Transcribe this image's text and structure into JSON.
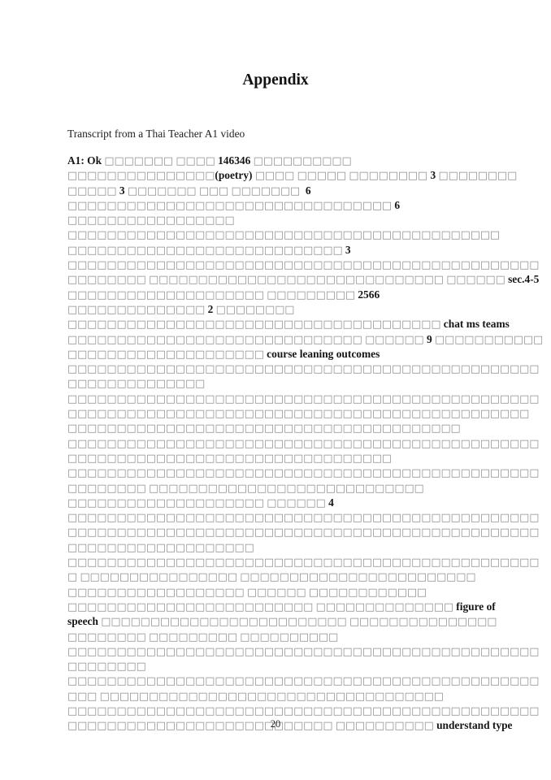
{
  "page": {
    "title": "Appendix",
    "subtitle": "Transcript from a Thai Teacher A1 video",
    "page_number": "20"
  },
  "colors": {
    "background": "#ffffff",
    "text": "#1e1e1e",
    "bold_latin_text": "#161616",
    "missing_glyph_box": "#8e8e8e"
  },
  "transcript": {
    "missing_glyph_char": "□",
    "lines": [
      "A1: Ok □□□□□□□ □□□□ 146346 □□□□□□□□□□",
      "□□□□□□□□□□□□□□□(poetry) □□□□ □□□□□ □□□□□□□□ 3 □□□□□□□□",
      "□□□□□ 3 □□□□□□□ □□□ □□□□□□□  6",
      "□□□□□□□□□□□□□□□□□□□□□□□□□□□□□□□□□ 6",
      "□□□□□□□□□□□□□□□□□",
      "□□□□□□□□□□□□□□□□□□□□□□□□□□□□□□□□□□□□□□□□□□□□",
      "□□□□□□□□□□□□□□□□□□□□□□□□□□□□ 3",
      "□□□□□□□□□□□□□□□□□□□□□□□□□□□□□□□□□□□□□□□□□□□□□□□□",
      "□□□□□□□□ □□□□□□□□□□□□□□□□□□□□□□□□□□□□□□ □□□□□□ sec.4-5",
      "□□□□□□□□□□□□□□□□□□□□ □□□□□□□□□ 2566",
      "□□□□□□□□□□□□□□ 2 □□□□□□□□",
      "□□□□□□□□□□□□□□□□□□□□□□□□□□□□□□□□□□□□□□ chat ms teams",
      "□□□□□□□□□□□□□□□□□□□□□□□□□□□□□□ □□□□□□ 9 □□□□□□□□□□□",
      "□□□□□□□□□□□□□□□□□□□□ course leaning outcomes",
      "□□□□□□□□□□□□□□□□□□□□□□□□□□□□□□□□□□□□□□□□□□□□□□□□",
      "□□□□□□□□□□□□□□",
      "□□□□□□□□□□□□□□□□□□□□□□□□□□□□□□□□□□□□□□□□□□□□□□□□",
      "□□□□□□□□□□□□□□□□□□□□□□□□□□□□□□□□□□□□□□□□□□□□□□□",
      "□□□□□□□□□□□□□□□□□□□□□□□□□□□□□□□□□□□□□□□□",
      "□□□□□□□□□□□□□□□□□□□□□□□□□□□□□□□□□□□□□□□□□□□□□□□□",
      "□□□□□□□□□□□□□□□□□□□□□□□□□□□□□□□□□",
      "□□□□□□□□□□□□□□□□□□□□□□□□□□□□□□□□□□□□□□□□□□□□□□□□",
      "□□□□□□□□ □□□□□□□□□□□□□□□□□□□□□□□□□□□□",
      "□□□□□□□□□□□□□□□□□□□□ □□□□□□ 4",
      "□□□□□□□□□□□□□□□□□□□□□□□□□□□□□□□□□□□□□□□□□□□□□□□□",
      "□□□□□□□□□□□□□□□□□□□□□□□□□□□□□□□□□□□□□□□□□□□□□□□□",
      "□□□□□□□□□□□□□□□□□□□",
      "□□□□□□□□□□□□□□□□□□□□□□□□□□□□□□□□□□□□□□□□□□□□□□□□",
      "□ □□□□□□□□□□□□□□□□ □□□□□□□□□□□□□□□□□□□□□□□□",
      "□□□□□□□□□□□□□□□□□□ □□□□□□ □□□□□□□□□□□□",
      "□□□□□□□□□□□□□□□□□□□□□□□□□ □□□□□□□□□□□□□□ figure of",
      "speech □□□□□□□□□□□□□□□□□□□□□□□□□ □□□□□□□□□□□□□□□",
      "□□□□□□□□ □□□□□□□□□ □□□□□□□□□□",
      "□□□□□□□□□□□□□□□□□□□□□□□□□□□□□□□□□□□□□□□□□□□□□□□□",
      "□□□□□□□□",
      "□□□□□□□□□□□□□□□□□□□□□□□□□□□□□□□□□□□□□□□□□□□□□□□□",
      "□□□ □□□□□□□□□□□□□□□□□□□□□□□□□□□□□□□□□□□",
      "□□□□□□□□□□□□□□□□□□□□□□□□□□□□□□□□□□□□□□□□□□□□□□□□",
      "□□□□□□□□□□□□□□□□□□□□□□□□□□□ □□□□□□□□□□ understand type"
    ]
  }
}
